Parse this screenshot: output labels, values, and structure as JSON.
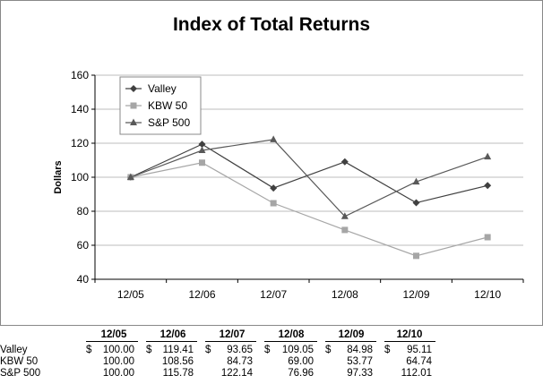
{
  "chart_data": {
    "type": "line",
    "title": "Index of Total Returns",
    "ylabel": "Dollars",
    "xlabel": "",
    "categories": [
      "12/05",
      "12/06",
      "12/07",
      "12/08",
      "12/09",
      "12/10"
    ],
    "ylim": [
      40,
      160
    ],
    "yticks": [
      40,
      60,
      80,
      100,
      120,
      140,
      160
    ],
    "grid": "horizontal",
    "legend_position": "top-left",
    "series": [
      {
        "name": "Valley",
        "marker": "diamond",
        "color": "#404040",
        "values": [
          100.0,
          119.41,
          93.65,
          109.05,
          84.98,
          95.11
        ]
      },
      {
        "name": "KBW 50",
        "marker": "square",
        "color": "#a6a6a6",
        "values": [
          100.0,
          108.56,
          84.73,
          69.0,
          53.77,
          64.74
        ]
      },
      {
        "name": "S&P 500",
        "marker": "triangle",
        "color": "#595959",
        "values": [
          100.0,
          115.78,
          122.14,
          76.96,
          97.33,
          112.01
        ]
      }
    ]
  },
  "table": {
    "headers": [
      "12/05",
      "12/06",
      "12/07",
      "12/08",
      "12/09",
      "12/10"
    ],
    "currency_symbol": "$",
    "rows": [
      {
        "label": "Valley",
        "values": [
          "100.00",
          "119.41",
          "93.65",
          "109.05",
          "84.98",
          "95.11"
        ],
        "show_dollar": true
      },
      {
        "label": "KBW 50",
        "values": [
          "100.00",
          "108.56",
          "84.73",
          "69.00",
          "53.77",
          "64.74"
        ],
        "show_dollar": false
      },
      {
        "label": "S&P 500",
        "values": [
          "100.00",
          "115.78",
          "122.14",
          "76.96",
          "97.33",
          "112.01"
        ],
        "show_dollar": false
      }
    ]
  }
}
